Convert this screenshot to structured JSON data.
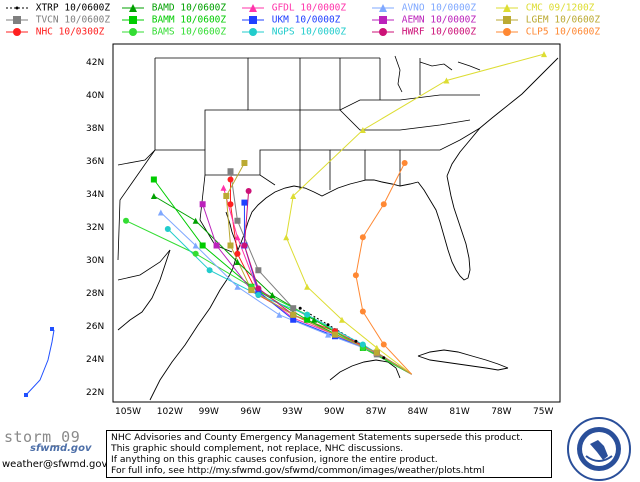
{
  "legend": [
    {
      "label": "XTRP",
      "time": "10/0600Z",
      "color": "#000000",
      "marker": "dot",
      "dashed": true
    },
    {
      "label": "TVCN",
      "time": "10/0600Z",
      "color": "#7f7f7f",
      "marker": "square"
    },
    {
      "label": "NHC",
      "time": "10/0300Z",
      "color": "#ff2020",
      "marker": "circle"
    },
    {
      "label": "BAMD",
      "time": "10/0600Z",
      "color": "#00a000",
      "marker": "triangle"
    },
    {
      "label": "BAMM",
      "time": "10/0600Z",
      "color": "#00cc00",
      "marker": "square"
    },
    {
      "label": "BAMS",
      "time": "10/0600Z",
      "color": "#33dd33",
      "marker": "circle"
    },
    {
      "label": "GFDL",
      "time": "10/0000Z",
      "color": "#ff33aa",
      "marker": "triangle"
    },
    {
      "label": "UKM",
      "time": "10/0000Z",
      "color": "#2040ff",
      "marker": "square"
    },
    {
      "label": "NGPS",
      "time": "10/0000Z",
      "color": "#22cccc",
      "marker": "circle"
    },
    {
      "label": "AVNO",
      "time": "10/0000Z",
      "color": "#7fa8ff",
      "marker": "triangle"
    },
    {
      "label": "AEMN",
      "time": "10/0000Z",
      "color": "#bb22bb",
      "marker": "square"
    },
    {
      "label": "HWRF",
      "time": "10/0000Z",
      "color": "#cc1177",
      "marker": "circle"
    },
    {
      "label": "CMC",
      "time": "09/1200Z",
      "color": "#dddd33",
      "marker": "triangle"
    },
    {
      "label": "LGEM",
      "time": "10/0600Z",
      "color": "#bbaa33",
      "marker": "square"
    },
    {
      "label": "CLP5",
      "time": "10/0600Z",
      "color": "#ff8833",
      "marker": "circle"
    }
  ],
  "lat_labels": [
    "42N",
    "40N",
    "38N",
    "36N",
    "34N",
    "32N",
    "30N",
    "28N",
    "26N",
    "24N",
    "22N"
  ],
  "lon_labels": [
    "105W",
    "102W",
    "99W",
    "96W",
    "93W",
    "90W",
    "87W",
    "84W",
    "81W",
    "78W",
    "75W"
  ],
  "storm_name": "storm_09",
  "logo_text": "sfwmd.gov",
  "email": "weather@sfwmd.gov",
  "notice_lines": [
    "NHC Advisories and County Emergency Management Statements supersede this product.",
    "This graphic should complement, not replace, NHC discussions.",
    "If anything on this graphic causes confusion, ignore the entire product.",
    "For full info, see  http://my.sfwmd.gov/sfwmd/common/images/weather/plots.html"
  ],
  "seal_text": "SOUTH FLORIDA WATER MANAGEMENT DISTRICT"
}
